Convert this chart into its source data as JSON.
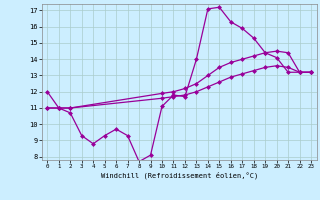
{
  "xlabel": "Windchill (Refroidissement éolien,°C)",
  "bg_color": "#cceeff",
  "grid_color": "#aacccc",
  "line_color": "#990099",
  "xlim": [
    -0.5,
    23.5
  ],
  "ylim": [
    7.8,
    17.4
  ],
  "xticks": [
    0,
    1,
    2,
    3,
    4,
    5,
    6,
    7,
    8,
    9,
    10,
    11,
    12,
    13,
    14,
    15,
    16,
    17,
    18,
    19,
    20,
    21,
    22,
    23
  ],
  "yticks": [
    8,
    9,
    10,
    11,
    12,
    13,
    14,
    15,
    16,
    17
  ],
  "line1_x": [
    0,
    1,
    2,
    3,
    4,
    5,
    6,
    7,
    8,
    9,
    10,
    11,
    12,
    13,
    14,
    15,
    16,
    17,
    18,
    19,
    20,
    21,
    22,
    23
  ],
  "line1_y": [
    12.0,
    11.0,
    10.7,
    9.3,
    8.8,
    9.3,
    9.7,
    9.3,
    7.7,
    8.1,
    11.1,
    11.8,
    11.7,
    14.0,
    17.1,
    17.2,
    16.3,
    15.9,
    15.3,
    14.4,
    14.1,
    13.2,
    13.2,
    13.2
  ],
  "line2_x": [
    0,
    1,
    2,
    10,
    11,
    12,
    13,
    14,
    15,
    16,
    17,
    18,
    19,
    20,
    21,
    22,
    23
  ],
  "line2_y": [
    11.0,
    11.0,
    11.0,
    11.9,
    12.0,
    12.2,
    12.5,
    13.0,
    13.5,
    13.8,
    14.0,
    14.2,
    14.4,
    14.5,
    14.4,
    13.2,
    13.2
  ],
  "line3_x": [
    0,
    1,
    2,
    10,
    11,
    12,
    13,
    14,
    15,
    16,
    17,
    18,
    19,
    20,
    21,
    22,
    23
  ],
  "line3_y": [
    11.0,
    11.0,
    11.0,
    11.6,
    11.7,
    11.8,
    12.0,
    12.3,
    12.6,
    12.9,
    13.1,
    13.3,
    13.5,
    13.6,
    13.5,
    13.2,
    13.2
  ]
}
